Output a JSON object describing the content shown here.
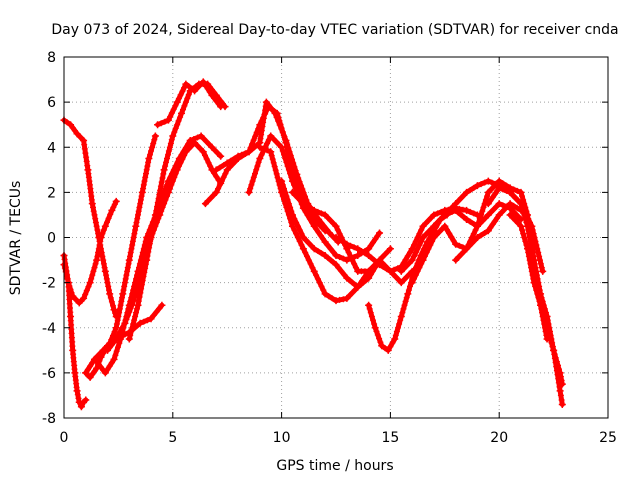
{
  "chart_data": {
    "type": "line",
    "title": "Day 073 of 2024, Sidereal Day-to-day VTEC variation (SDTVAR) for receiver cnda",
    "xlabel": "GPS time / hours",
    "ylabel": "SDTVAR / TECUs",
    "xlim": [
      0,
      25
    ],
    "ylim": [
      -8,
      8
    ],
    "xticks": [
      0,
      5,
      10,
      15,
      20,
      25
    ],
    "yticks": [
      -8,
      -6,
      -4,
      -2,
      0,
      2,
      4,
      6,
      8
    ],
    "xtick_labels": [
      "0",
      "5",
      "10",
      "15",
      "20",
      "25"
    ],
    "ytick_labels": [
      "-8",
      "-6",
      "-4",
      "-2",
      "0",
      "2",
      "4",
      "6",
      "8"
    ],
    "grid": true,
    "marker": "+",
    "series_color": "#ff0000",
    "series": [
      {
        "x": [
          0.0,
          0.3,
          0.6,
          0.9,
          1.1,
          1.3,
          1.6,
          1.9,
          2.1,
          2.3,
          2.4
        ],
        "y": [
          5.2,
          5.0,
          4.6,
          4.3,
          3.0,
          1.5,
          0.0,
          -1.5,
          -2.5,
          -3.2,
          -3.5
        ]
      },
      {
        "x": [
          0.0,
          0.2,
          0.4,
          0.7,
          0.9,
          1.2,
          1.5,
          1.7,
          1.9,
          2.2,
          2.4
        ],
        "y": [
          -1.2,
          -2.0,
          -2.6,
          -2.9,
          -2.7,
          -2.0,
          -1.0,
          0.0,
          0.5,
          1.2,
          1.6
        ]
      },
      {
        "x": [
          0.0,
          0.2,
          0.3,
          0.4,
          0.5,
          0.6,
          0.7,
          0.8,
          0.9,
          1.0
        ],
        "y": [
          -0.8,
          -2.0,
          -3.5,
          -5.0,
          -6.0,
          -6.8,
          -7.3,
          -7.5,
          -7.3,
          -7.2
        ]
      },
      {
        "x": [
          1.0,
          1.2,
          1.5,
          1.7,
          2.0,
          2.3,
          2.6,
          3.0,
          3.5,
          4.0,
          4.5
        ],
        "y": [
          -6.0,
          -6.2,
          -5.8,
          -5.3,
          -4.8,
          -4.5,
          -4.4,
          -4.2,
          -3.8,
          -3.6,
          -3.0
        ]
      },
      {
        "x": [
          1.0,
          1.4,
          1.8,
          2.1,
          2.4,
          2.7,
          3.0,
          3.3,
          3.6,
          3.9,
          4.2
        ],
        "y": [
          -6.0,
          -5.4,
          -5.0,
          -4.7,
          -4.0,
          -2.5,
          -1.0,
          0.5,
          2.0,
          3.5,
          4.5
        ]
      },
      {
        "x": [
          1.5,
          1.9,
          2.3,
          2.6,
          3.0,
          3.4,
          3.8,
          4.3,
          4.8,
          5.3,
          5.8,
          6.3,
          6.8,
          7.2
        ],
        "y": [
          -5.5,
          -6.0,
          -5.4,
          -4.5,
          -3.0,
          -1.5,
          0.0,
          1.2,
          2.5,
          3.5,
          4.3,
          4.5,
          4.0,
          3.6
        ]
      },
      {
        "x": [
          2.0,
          2.4,
          2.8,
          3.2,
          3.6,
          4.0,
          4.4,
          4.8,
          5.2,
          5.6,
          6.0,
          6.4,
          6.8,
          7.2
        ],
        "y": [
          -5.0,
          -4.5,
          -3.8,
          -2.8,
          -1.5,
          0.0,
          1.0,
          2.0,
          3.0,
          3.8,
          4.2,
          3.8,
          3.0,
          2.4
        ]
      },
      {
        "x": [
          3.0,
          3.4,
          3.8,
          4.2,
          4.6,
          5.0,
          5.4,
          5.8,
          6.2,
          6.6,
          7.0,
          7.4
        ],
        "y": [
          -4.5,
          -3.0,
          -1.0,
          1.0,
          3.0,
          4.5,
          5.5,
          6.5,
          6.8,
          6.8,
          6.3,
          5.8
        ]
      },
      {
        "x": [
          4.3,
          4.8,
          5.2,
          5.6,
          6.0,
          6.4,
          6.8,
          7.2
        ],
        "y": [
          5.0,
          5.2,
          6.0,
          6.8,
          6.5,
          6.9,
          6.3,
          5.8
        ]
      },
      {
        "x": [
          6.5,
          7.0,
          7.5,
          8.0,
          8.5,
          9.0,
          9.4,
          9.8,
          10.2,
          10.6,
          11.0,
          11.5,
          12.0
        ],
        "y": [
          1.5,
          2.0,
          3.0,
          3.5,
          3.8,
          5.0,
          5.8,
          5.5,
          4.2,
          2.5,
          1.5,
          0.8,
          0.3
        ]
      },
      {
        "x": [
          7.0,
          7.5,
          8.0,
          8.5,
          9.0,
          9.3,
          9.7,
          10.2,
          10.7,
          11.2,
          11.7,
          12.2,
          12.6
        ],
        "y": [
          3.0,
          3.3,
          3.6,
          3.8,
          4.2,
          6.0,
          5.5,
          4.3,
          2.8,
          1.5,
          0.8,
          0.2,
          -0.2
        ]
      },
      {
        "x": [
          8.5,
          9.0,
          9.5,
          10.0,
          10.5,
          11.0,
          11.5,
          12.0,
          12.5,
          13.0,
          13.5,
          14.0,
          14.5
        ],
        "y": [
          2.0,
          3.5,
          4.5,
          4.0,
          2.5,
          1.3,
          0.5,
          -0.2,
          -0.8,
          -1.0,
          -0.8,
          -0.5,
          0.2
        ]
      },
      {
        "x": [
          9.0,
          9.5,
          10.0,
          10.5,
          11.0,
          11.5,
          12.0,
          12.5,
          13.0,
          13.5,
          14.0
        ],
        "y": [
          4.0,
          3.8,
          2.0,
          0.5,
          -0.5,
          -1.5,
          -2.5,
          -2.8,
          -2.7,
          -2.2,
          -1.5
        ]
      },
      {
        "x": [
          10.0,
          10.5,
          11.0,
          11.5,
          12.0,
          12.5,
          13.0,
          13.5,
          14.0,
          14.5,
          15.0
        ],
        "y": [
          2.5,
          1.0,
          0.0,
          -0.5,
          -0.8,
          -1.2,
          -1.8,
          -2.2,
          -1.8,
          -1.0,
          -0.5
        ]
      },
      {
        "x": [
          10.5,
          11.0,
          11.5,
          12.0,
          12.5,
          13.0,
          13.5,
          14.0,
          14.5,
          15.0,
          15.5,
          16.0
        ],
        "y": [
          2.0,
          1.5,
          1.2,
          1.0,
          0.5,
          -0.5,
          -1.5,
          -1.5,
          -1.0,
          -1.5,
          -2.0,
          -1.5
        ]
      },
      {
        "x": [
          14.0,
          14.3,
          14.6,
          14.9,
          15.2,
          15.5,
          15.8,
          16.1,
          16.4,
          16.7,
          17.0,
          17.3,
          17.6
        ],
        "y": [
          -3.0,
          -4.0,
          -4.8,
          -5.0,
          -4.5,
          -3.5,
          -2.5,
          -1.5,
          -0.8,
          -0.2,
          0.3,
          0.8,
          1.0
        ]
      },
      {
        "x": [
          12.5,
          13.0,
          13.5,
          14.0,
          14.5,
          15.0,
          15.5,
          16.0,
          16.5,
          17.0,
          17.5,
          18.0,
          18.5,
          19.0
        ],
        "y": [
          0.0,
          -0.3,
          -0.5,
          -0.8,
          -1.2,
          -1.5,
          -1.3,
          -0.5,
          0.5,
          1.0,
          1.2,
          1.3,
          1.2,
          1.0
        ]
      },
      {
        "x": [
          15.5,
          16.0,
          16.5,
          17.0,
          17.5,
          18.0,
          18.5,
          19.0,
          19.5,
          20.0,
          20.5,
          21.0
        ],
        "y": [
          -1.5,
          -1.0,
          0.0,
          0.5,
          1.0,
          1.2,
          0.8,
          0.5,
          1.0,
          1.5,
          1.3,
          0.8
        ]
      },
      {
        "x": [
          16.0,
          16.5,
          17.0,
          17.5,
          18.0,
          18.5,
          19.0,
          19.5,
          20.0,
          20.5,
          21.0
        ],
        "y": [
          -2.0,
          -1.0,
          0.0,
          0.5,
          -0.3,
          -0.5,
          0.0,
          0.3,
          1.0,
          1.5,
          1.2
        ]
      },
      {
        "x": [
          17.0,
          17.5,
          18.0,
          18.5,
          19.0,
          19.5,
          20.0,
          20.5,
          21.0,
          21.5,
          22.0
        ],
        "y": [
          0.5,
          1.0,
          1.5,
          2.0,
          2.3,
          2.5,
          2.3,
          2.0,
          1.5,
          0.5,
          -1.5
        ]
      },
      {
        "x": [
          18.0,
          18.5,
          19.0,
          19.5,
          20.0,
          20.5,
          21.0,
          21.3,
          21.6,
          21.9,
          22.2
        ],
        "y": [
          -1.0,
          -0.5,
          0.5,
          2.0,
          2.5,
          2.2,
          2.0,
          1.0,
          -1.0,
          -3.0,
          -4.5
        ]
      },
      {
        "x": [
          19.5,
          20.0,
          20.5,
          21.0,
          21.3,
          21.6,
          21.9,
          22.2,
          22.5,
          22.8,
          22.9
        ],
        "y": [
          1.5,
          2.2,
          2.0,
          1.5,
          0.5,
          -1.0,
          -2.5,
          -3.5,
          -5.0,
          -6.8,
          -7.4
        ]
      },
      {
        "x": [
          20.5,
          21.0,
          21.3,
          21.6,
          21.9,
          22.2,
          22.5,
          22.8,
          22.9
        ],
        "y": [
          1.0,
          0.5,
          -0.5,
          -2.0,
          -3.0,
          -4.0,
          -5.0,
          -6.0,
          -6.5
        ]
      }
    ]
  }
}
